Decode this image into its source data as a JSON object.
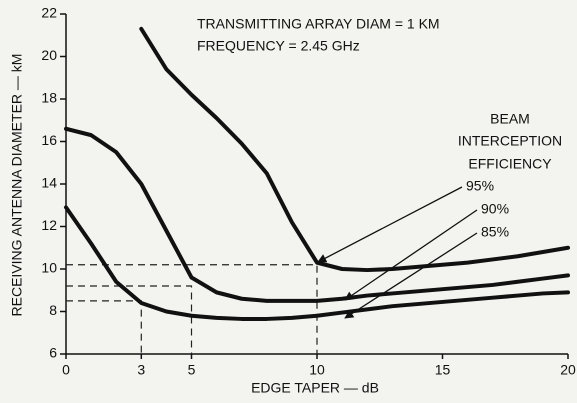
{
  "chart_data": {
    "type": "line",
    "x": [
      0,
      1,
      2,
      3,
      4,
      5,
      6,
      7,
      8,
      9,
      10,
      11,
      12,
      13,
      14,
      15,
      16,
      17,
      18,
      19,
      20
    ],
    "series": [
      {
        "name": "95%",
        "color": "#111111",
        "values": [
          null,
          null,
          null,
          21.3,
          19.4,
          18.2,
          17.1,
          15.9,
          14.5,
          12.2,
          10.3,
          10.0,
          9.95,
          10.0,
          10.1,
          10.2,
          10.3,
          10.45,
          10.6,
          10.8,
          11.0
        ]
      },
      {
        "name": "90%",
        "color": "#111111",
        "values": [
          16.6,
          16.3,
          15.5,
          14.0,
          11.8,
          9.6,
          8.9,
          8.6,
          8.5,
          8.5,
          8.5,
          8.6,
          8.75,
          8.85,
          8.95,
          9.05,
          9.15,
          9.25,
          9.4,
          9.55,
          9.7
        ]
      },
      {
        "name": "85%",
        "color": "#111111",
        "values": [
          12.9,
          11.2,
          9.4,
          8.4,
          8.0,
          7.8,
          7.7,
          7.65,
          7.65,
          7.7,
          7.8,
          7.95,
          8.1,
          8.25,
          8.35,
          8.45,
          8.55,
          8.65,
          8.75,
          8.85,
          8.9
        ]
      }
    ],
    "xlabel": "EDGE TAPER — dB",
    "ylabel": "RECEIVING ANTENNA DIAMETER — kM",
    "annotations": [
      "TRANSMITTING ARRAY DIAM = 1 KM",
      "FREQUENCY = 2.45 GHz"
    ],
    "legend_title": [
      "BEAM",
      "INTERCEPTION",
      "EFFICIENCY"
    ],
    "reference_lines": [
      {
        "x": 10,
        "y": 10.2
      },
      {
        "x": 5,
        "y": 9.2
      },
      {
        "x": 3,
        "y": 8.5
      }
    ],
    "xlim": [
      0,
      20
    ],
    "xticks": [
      0,
      3,
      5,
      10,
      15,
      20
    ],
    "ylim": [
      6,
      22
    ],
    "yticks": [
      6,
      8,
      10,
      12,
      14,
      16,
      18,
      20,
      22
    ]
  }
}
